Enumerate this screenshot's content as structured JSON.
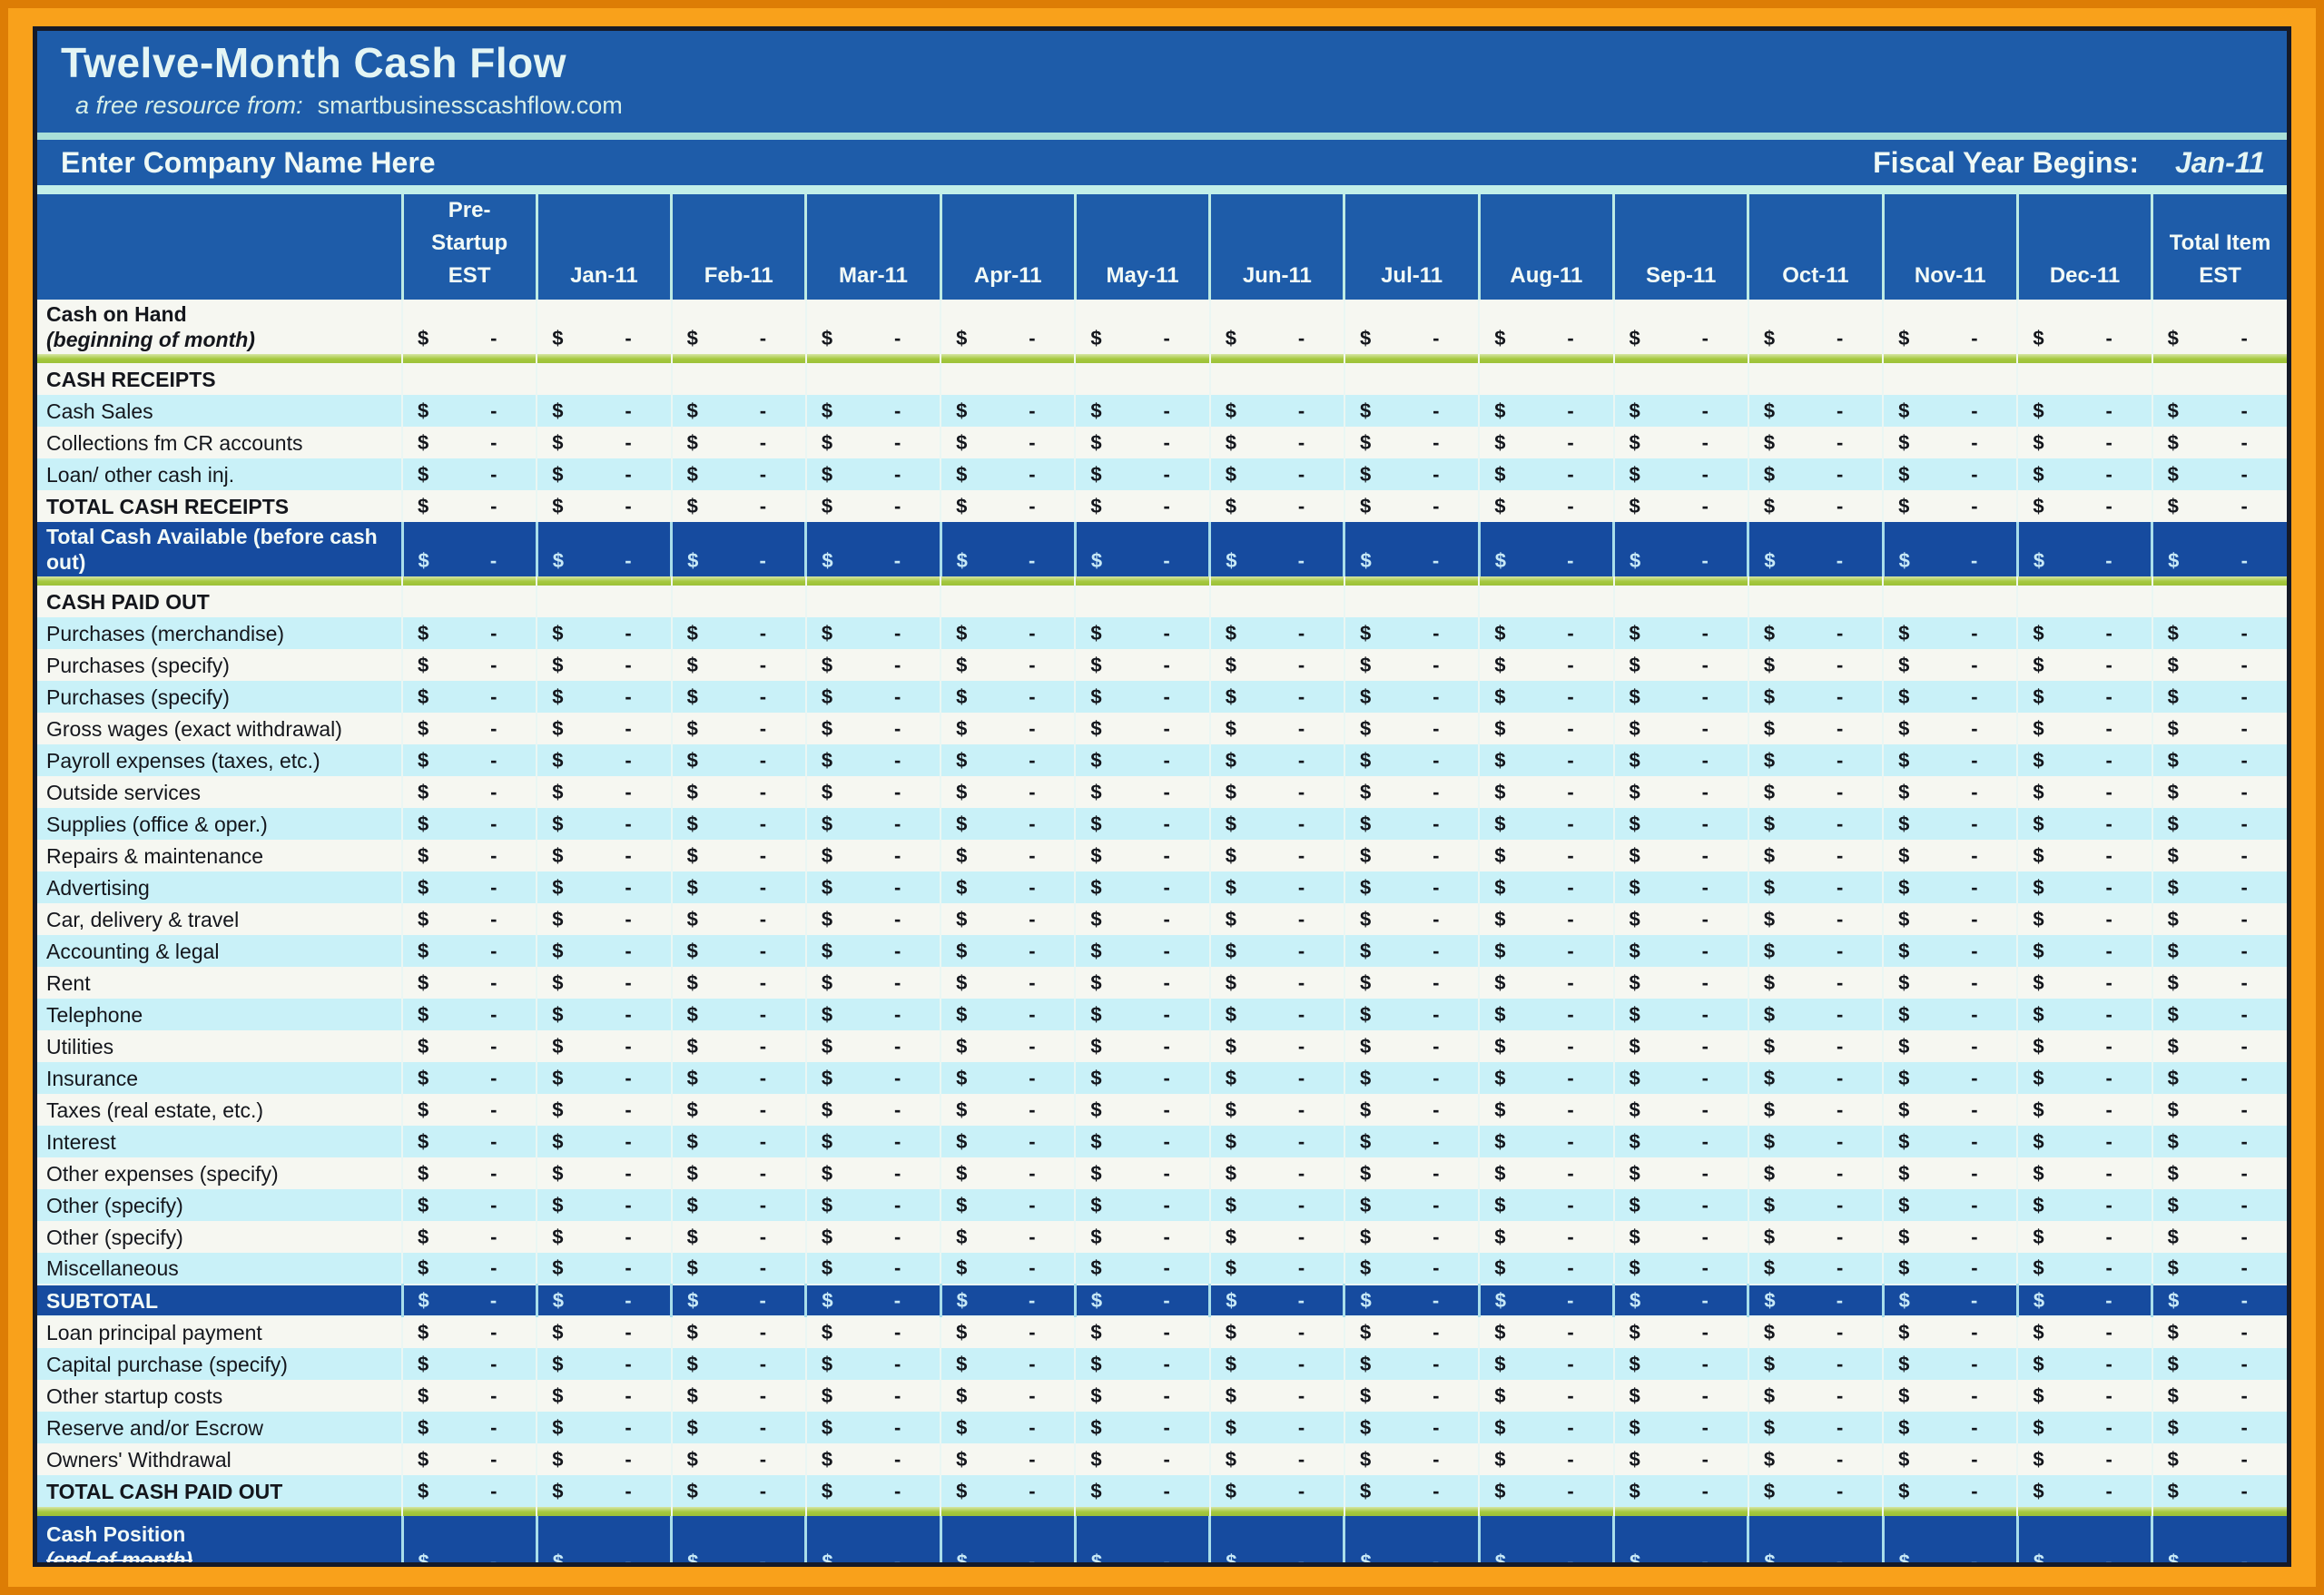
{
  "header": {
    "title": "Twelve-Month Cash Flow",
    "subtitle_prefix": "a free resource from:",
    "subtitle_site": "smartbusinesscashflow.com",
    "company_name": "Enter Company Name Here",
    "fiscal_label": "Fiscal Year Begins:",
    "fiscal_value": "Jan-11"
  },
  "colors": {
    "border_orange": "#F9A11B",
    "border_orange_dark": "#DD7D05",
    "panel_blue": "#1E5CA9",
    "dark_row_blue": "#164B9F",
    "row_cyan": "#C9F1F8",
    "row_white": "#F6F7F1",
    "separator_green": "#A5C83E",
    "divider_teal": "#A9DFD8"
  },
  "table": {
    "columns": [
      "Pre-\nStartup\nEST",
      "Jan-11",
      "Feb-11",
      "Mar-11",
      "Apr-11",
      "May-11",
      "Jun-11",
      "Jul-11",
      "Aug-11",
      "Sep-11",
      "Oct-11",
      "Nov-11",
      "Dec-11",
      "Total Item\nEST"
    ],
    "cell_text": {
      "currency": "$",
      "empty_value": "-"
    },
    "rows": [
      {
        "type": "plain2",
        "label": "Cash on Hand",
        "sublabel": "(beginning of month)",
        "values": true
      },
      {
        "type": "sep"
      },
      {
        "type": "section",
        "label": "CASH RECEIPTS",
        "values": false
      },
      {
        "type": "cyan",
        "label": "Cash Sales",
        "values": true
      },
      {
        "type": "white",
        "label": "Collections fm CR accounts",
        "values": true
      },
      {
        "type": "cyan",
        "label": "Loan/ other cash inj.",
        "values": true
      },
      {
        "type": "white total",
        "label": "TOTAL CASH RECEIPTS",
        "values": true
      },
      {
        "type": "dark2",
        "label": "Total Cash Available (before cash out)",
        "values": true
      },
      {
        "type": "sep"
      },
      {
        "type": "section",
        "label": "CASH PAID OUT",
        "values": false
      },
      {
        "type": "cyan",
        "label": "Purchases (merchandise)",
        "values": true
      },
      {
        "type": "white",
        "label": "Purchases (specify)",
        "values": true
      },
      {
        "type": "cyan",
        "label": "Purchases (specify)",
        "values": true
      },
      {
        "type": "white",
        "label": "Gross wages (exact withdrawal)",
        "values": true
      },
      {
        "type": "cyan",
        "label": "Payroll expenses (taxes, etc.)",
        "values": true
      },
      {
        "type": "white",
        "label": "Outside services",
        "values": true
      },
      {
        "type": "cyan",
        "label": "Supplies (office & oper.)",
        "values": true
      },
      {
        "type": "white",
        "label": "Repairs & maintenance",
        "values": true
      },
      {
        "type": "cyan",
        "label": "Advertising",
        "values": true
      },
      {
        "type": "white",
        "label": "Car, delivery & travel",
        "values": true
      },
      {
        "type": "cyan",
        "label": "Accounting & legal",
        "values": true
      },
      {
        "type": "white",
        "label": "Rent",
        "values": true
      },
      {
        "type": "cyan",
        "label": "Telephone",
        "values": true
      },
      {
        "type": "white",
        "label": "Utilities",
        "values": true
      },
      {
        "type": "cyan",
        "label": "Insurance",
        "values": true
      },
      {
        "type": "white",
        "label": "Taxes (real estate, etc.)",
        "values": true
      },
      {
        "type": "cyan",
        "label": "Interest",
        "values": true
      },
      {
        "type": "white",
        "label": "Other expenses (specify)",
        "values": true
      },
      {
        "type": "cyan",
        "label": "Other (specify)",
        "values": true
      },
      {
        "type": "white",
        "label": "Other (specify)",
        "values": true
      },
      {
        "type": "cyan",
        "label": "Miscellaneous",
        "values": true
      },
      {
        "type": "dark total",
        "label": "SUBTOTAL",
        "values": true
      },
      {
        "type": "white",
        "label": "Loan principal payment",
        "values": true
      },
      {
        "type": "cyan",
        "label": "Capital purchase (specify)",
        "values": true
      },
      {
        "type": "white",
        "label": "Other startup costs",
        "values": true
      },
      {
        "type": "cyan",
        "label": "Reserve and/or Escrow",
        "values": true
      },
      {
        "type": "white",
        "label": "Owners' Withdrawal",
        "values": true
      },
      {
        "type": "cyan total",
        "label": "TOTAL CASH PAID OUT",
        "values": true
      },
      {
        "type": "sep"
      },
      {
        "type": "dark2 strike",
        "label": "Cash Position",
        "sublabel": "(end of month)",
        "values": true
      }
    ]
  }
}
